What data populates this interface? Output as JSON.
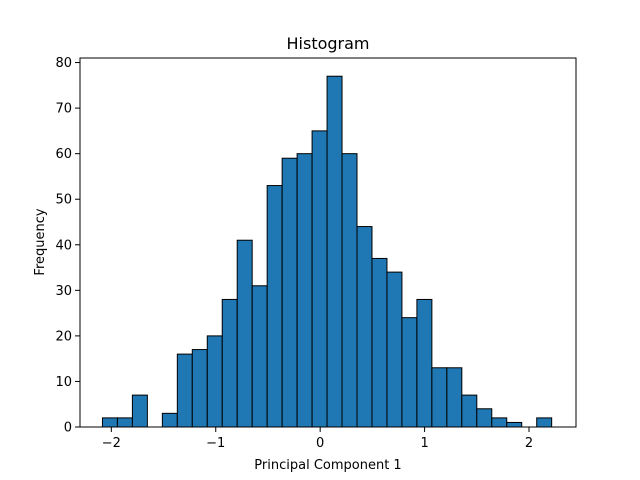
{
  "chart_data": {
    "type": "bar",
    "title": "Histogram",
    "xlabel": "Principal Component 1",
    "ylabel": "Frequency",
    "xlim": [
      -2.3,
      2.45
    ],
    "ylim": [
      0,
      81
    ],
    "xticks": [
      -2,
      -1,
      0,
      1,
      2
    ],
    "xtick_labels": [
      "−2",
      "−1",
      "0",
      "1",
      "2"
    ],
    "yticks": [
      0,
      10,
      20,
      30,
      40,
      50,
      60,
      70,
      80
    ],
    "ytick_labels": [
      "0",
      "10",
      "20",
      "30",
      "40",
      "50",
      "60",
      "70",
      "80"
    ],
    "bin_start": -2.085,
    "bin_width": 0.1434,
    "values": [
      2,
      2,
      7,
      0,
      3,
      16,
      17,
      20,
      28,
      41,
      31,
      53,
      59,
      60,
      65,
      77,
      60,
      44,
      37,
      34,
      24,
      28,
      13,
      13,
      7,
      4,
      2,
      1,
      0,
      2
    ],
    "bar_color": "#1f77b4",
    "edge_color": "#000000",
    "grid": false,
    "legend": "none"
  }
}
